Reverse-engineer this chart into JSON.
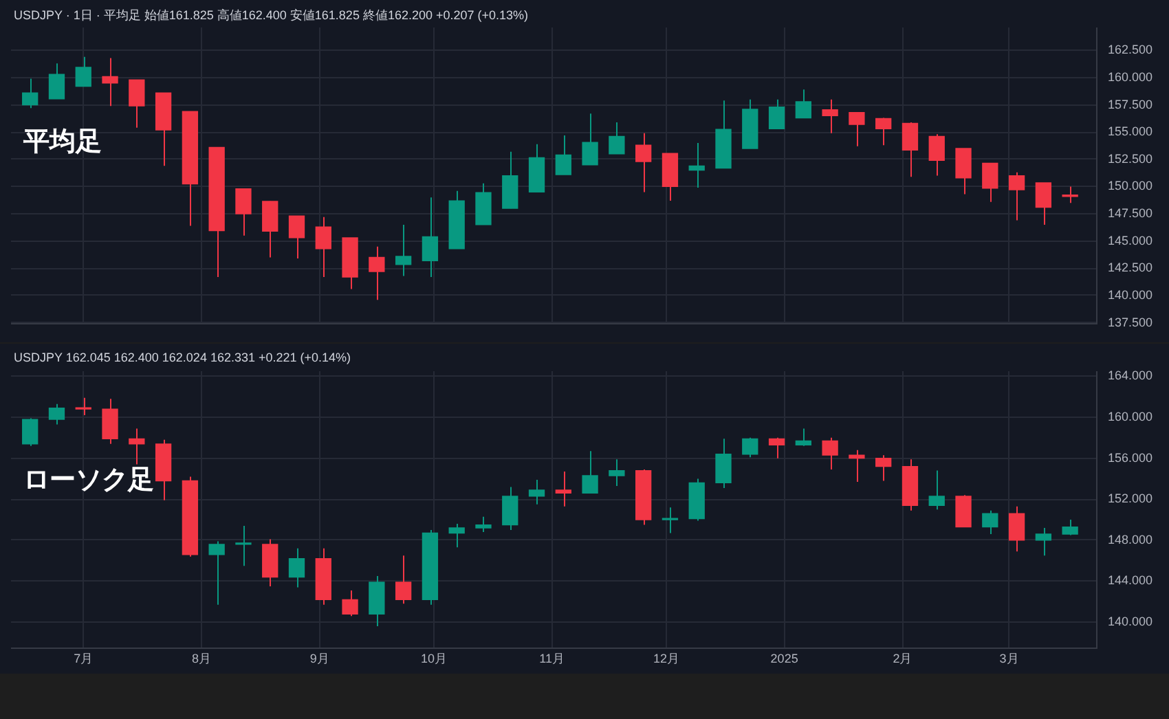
{
  "chart_data": [
    {
      "type": "candlestick",
      "title": "USDJPY · 1日 · 平均足 始値161.825 高値162.400 安値161.825 終値162.200 +0.207 (+0.13%)",
      "annotations": [
        "平均足"
      ],
      "x": [
        "2024-06-17",
        "2024-06-24",
        "2024-07-01",
        "2024-07-08",
        "2024-07-15",
        "2024-07-22",
        "2024-07-29",
        "2024-08-05",
        "2024-08-12",
        "2024-08-19",
        "2024-08-26",
        "2024-09-02",
        "2024-09-09",
        "2024-09-16",
        "2024-09-23",
        "2024-09-30",
        "2024-10-07",
        "2024-10-14",
        "2024-10-21",
        "2024-10-28",
        "2024-11-04",
        "2024-11-11",
        "2024-11-18",
        "2024-11-25",
        "2024-12-02",
        "2024-12-09",
        "2024-12-16",
        "2024-12-23",
        "2024-12-30",
        "2025-01-06",
        "2025-01-13",
        "2025-01-20",
        "2025-01-27",
        "2025-02-03",
        "2025-02-10",
        "2025-02-17",
        "2025-02-24",
        "2025-03-03",
        "2025-03-10",
        "2025-03-17"
      ],
      "ohlc": [
        [
          157.5,
          159.9,
          157.2,
          158.6
        ],
        [
          158.05,
          161.3,
          158.05,
          160.3
        ],
        [
          159.2,
          161.9,
          159.2,
          160.95
        ],
        [
          160.1,
          161.8,
          157.4,
          159.5
        ],
        [
          159.8,
          159.8,
          155.4,
          157.4
        ],
        [
          158.6,
          158.6,
          151.9,
          155.2
        ],
        [
          156.9,
          156.9,
          146.4,
          150.25
        ],
        [
          153.6,
          153.6,
          141.7,
          145.95
        ],
        [
          149.8,
          149.8,
          145.5,
          147.5
        ],
        [
          148.65,
          148.65,
          143.5,
          145.9
        ],
        [
          147.3,
          147.3,
          143.4,
          145.3
        ],
        [
          146.3,
          147.2,
          141.7,
          144.3
        ],
        [
          145.3,
          145.3,
          140.6,
          141.7
        ],
        [
          143.5,
          144.5,
          139.6,
          142.2
        ],
        [
          142.85,
          146.5,
          141.8,
          143.6
        ],
        [
          143.2,
          149.0,
          141.7,
          145.4
        ],
        [
          144.3,
          149.6,
          144.3,
          148.7
        ],
        [
          146.5,
          150.3,
          146.5,
          149.45
        ],
        [
          148.0,
          153.2,
          148.0,
          151.0
        ],
        [
          149.5,
          153.9,
          149.5,
          152.65
        ],
        [
          151.1,
          154.7,
          151.1,
          152.9
        ],
        [
          152.0,
          156.7,
          152.0,
          154.05
        ],
        [
          153.0,
          155.9,
          153.0,
          154.6
        ],
        [
          153.8,
          154.9,
          149.5,
          152.3
        ],
        [
          153.05,
          153.05,
          148.7,
          150.0
        ],
        [
          151.5,
          154.0,
          149.9,
          151.9
        ],
        [
          151.7,
          157.9,
          151.7,
          155.25
        ],
        [
          153.5,
          158.0,
          153.5,
          157.1
        ],
        [
          155.3,
          158.0,
          155.3,
          157.3
        ],
        [
          156.3,
          158.9,
          156.3,
          157.8
        ],
        [
          157.05,
          158.0,
          154.9,
          156.5
        ],
        [
          156.8,
          156.8,
          153.7,
          155.7
        ],
        [
          156.25,
          156.3,
          153.8,
          155.3
        ],
        [
          155.8,
          155.9,
          150.9,
          153.35
        ],
        [
          154.6,
          154.8,
          151.0,
          152.4
        ],
        [
          153.5,
          153.5,
          149.3,
          150.8
        ],
        [
          152.15,
          152.15,
          148.6,
          149.85
        ],
        [
          151.0,
          151.3,
          146.9,
          149.7
        ],
        [
          150.35,
          150.35,
          146.5,
          148.1
        ],
        [
          149.2,
          150.0,
          148.5,
          149.1
        ]
      ],
      "colors": [
        "#089981",
        "#089981",
        "#089981",
        "#f23645",
        "#f23645",
        "#f23645",
        "#f23645",
        "#f23645",
        "#f23645",
        "#f23645",
        "#f23645",
        "#f23645",
        "#f23645",
        "#f23645",
        "#089981",
        "#089981",
        "#089981",
        "#089981",
        "#089981",
        "#089981",
        "#089981",
        "#089981",
        "#089981",
        "#f23645",
        "#f23645",
        "#089981",
        "#089981",
        "#089981",
        "#089981",
        "#089981",
        "#f23645",
        "#f23645",
        "#f23645",
        "#f23645",
        "#f23645",
        "#f23645",
        "#f23645",
        "#f23645",
        "#f23645",
        "#f23645"
      ],
      "xlim": [
        "2024-06-12",
        "2025-03-24"
      ],
      "xticks": [
        {
          "value": "2024-07-01",
          "label": null
        },
        {
          "value": "2024-08-01",
          "label": null
        },
        {
          "value": "2024-09-01",
          "label": null
        },
        {
          "value": "2024-10-01",
          "label": null
        },
        {
          "value": "2024-11-01",
          "label": null
        },
        {
          "value": "2024-12-01",
          "label": null
        },
        {
          "value": "2025-01-01",
          "label": null
        },
        {
          "value": "2025-02-01",
          "label": null
        },
        {
          "value": "2025-03-01",
          "label": null
        }
      ],
      "ylim": [
        137.4,
        164.6
      ],
      "yticks": [
        {
          "value": 137.5,
          "label": "137.500"
        },
        {
          "value": 140,
          "label": "140.000"
        },
        {
          "value": 142.5,
          "label": "142.500"
        },
        {
          "value": 145,
          "label": "145.000"
        },
        {
          "value": 147.5,
          "label": "147.500"
        },
        {
          "value": 150,
          "label": "150.000"
        },
        {
          "value": 152.5,
          "label": "152.500"
        },
        {
          "value": 155,
          "label": "155.000"
        },
        {
          "value": 157.5,
          "label": "157.500"
        },
        {
          "value": 160,
          "label": "160.000"
        },
        {
          "value": 162.5,
          "label": "162.500"
        }
      ],
      "tick_labels": "y",
      "grid": true,
      "legend": false
    },
    {
      "type": "candlestick",
      "title": "USDJPY 162.045 162.400 162.024 162.331 +0.221 (+0.14%)",
      "annotations": [
        "ローソク足"
      ],
      "x": [
        "2024-06-17",
        "2024-06-24",
        "2024-07-01",
        "2024-07-08",
        "2024-07-15",
        "2024-07-22",
        "2024-07-29",
        "2024-08-05",
        "2024-08-12",
        "2024-08-19",
        "2024-08-26",
        "2024-09-02",
        "2024-09-09",
        "2024-09-16",
        "2024-09-23",
        "2024-09-30",
        "2024-10-07",
        "2024-10-14",
        "2024-10-21",
        "2024-10-28",
        "2024-11-04",
        "2024-11-11",
        "2024-11-18",
        "2024-11-25",
        "2024-12-02",
        "2024-12-09",
        "2024-12-16",
        "2024-12-23",
        "2024-12-30",
        "2025-01-06",
        "2025-01-13",
        "2025-01-20",
        "2025-01-27",
        "2025-02-03",
        "2025-02-10",
        "2025-02-17",
        "2025-02-24",
        "2025-03-03",
        "2025-03-10",
        "2025-03-17"
      ],
      "ohlc": [
        [
          157.4,
          159.9,
          157.2,
          159.8
        ],
        [
          159.8,
          161.3,
          159.3,
          160.9
        ],
        [
          160.9,
          161.9,
          160.2,
          160.8
        ],
        [
          160.8,
          161.8,
          157.4,
          157.9
        ],
        [
          157.9,
          158.9,
          155.4,
          157.4
        ],
        [
          157.4,
          157.8,
          151.9,
          153.8
        ],
        [
          153.8,
          154.2,
          146.4,
          146.6
        ],
        [
          146.6,
          147.9,
          141.7,
          147.6
        ],
        [
          147.6,
          149.4,
          145.5,
          147.6
        ],
        [
          147.6,
          148.1,
          143.5,
          144.4
        ],
        [
          144.4,
          147.2,
          143.4,
          146.2
        ],
        [
          146.2,
          147.2,
          141.7,
          142.2
        ],
        [
          142.2,
          143.1,
          140.6,
          140.8
        ],
        [
          140.8,
          144.5,
          139.6,
          143.9
        ],
        [
          143.9,
          146.5,
          141.8,
          142.2
        ],
        [
          142.2,
          149.0,
          141.7,
          148.7
        ],
        [
          148.7,
          149.6,
          147.3,
          149.2
        ],
        [
          149.2,
          150.3,
          148.8,
          149.5
        ],
        [
          149.5,
          153.2,
          149.0,
          152.3
        ],
        [
          152.3,
          153.9,
          151.5,
          152.9
        ],
        [
          152.9,
          154.7,
          151.3,
          152.6
        ],
        [
          152.6,
          156.7,
          152.6,
          154.3
        ],
        [
          154.3,
          155.9,
          153.3,
          154.8
        ],
        [
          154.8,
          154.9,
          149.5,
          150.0
        ],
        [
          150.0,
          151.2,
          148.7,
          150.1
        ],
        [
          150.1,
          154.0,
          149.9,
          153.6
        ],
        [
          153.6,
          157.9,
          153.1,
          156.4
        ],
        [
          156.4,
          158.0,
          156.1,
          157.9
        ],
        [
          157.9,
          158.0,
          156.0,
          157.3
        ],
        [
          157.3,
          158.9,
          157.2,
          157.7
        ],
        [
          157.7,
          158.0,
          154.9,
          156.3
        ],
        [
          156.3,
          156.8,
          153.7,
          156.0
        ],
        [
          156.0,
          156.3,
          153.8,
          155.2
        ],
        [
          155.2,
          155.9,
          150.9,
          151.4
        ],
        [
          151.4,
          154.8,
          151.0,
          152.3
        ],
        [
          152.3,
          152.4,
          149.3,
          149.3
        ],
        [
          149.3,
          150.9,
          148.6,
          150.6
        ],
        [
          150.6,
          151.3,
          146.9,
          148.0
        ],
        [
          148.0,
          149.2,
          146.5,
          148.6
        ],
        [
          148.6,
          150.0,
          148.5,
          149.3
        ]
      ],
      "colors": [
        "#089981",
        "#089981",
        "#f23645",
        "#f23645",
        "#f23645",
        "#f23645",
        "#f23645",
        "#089981",
        "#089981",
        "#f23645",
        "#089981",
        "#f23645",
        "#f23645",
        "#089981",
        "#f23645",
        "#089981",
        "#089981",
        "#089981",
        "#089981",
        "#089981",
        "#f23645",
        "#089981",
        "#089981",
        "#f23645",
        "#089981",
        "#089981",
        "#089981",
        "#089981",
        "#f23645",
        "#089981",
        "#f23645",
        "#f23645",
        "#f23645",
        "#f23645",
        "#089981",
        "#f23645",
        "#089981",
        "#f23645",
        "#089981",
        "#089981"
      ],
      "xlim": [
        "2024-06-12",
        "2025-03-24"
      ],
      "xticks": [
        {
          "value": "2024-07-01",
          "label": "7月"
        },
        {
          "value": "2024-08-01",
          "label": "8月"
        },
        {
          "value": "2024-09-01",
          "label": "9月"
        },
        {
          "value": "2024-10-01",
          "label": "10月"
        },
        {
          "value": "2024-11-01",
          "label": "11月"
        },
        {
          "value": "2024-12-01",
          "label": "12月"
        },
        {
          "value": "2025-01-01",
          "label": "2025"
        },
        {
          "value": "2025-02-01",
          "label": "2月"
        },
        {
          "value": "2025-03-01",
          "label": "3月"
        }
      ],
      "ylim": [
        137.5,
        164.5
      ],
      "yticks": [
        {
          "value": 140,
          "label": "140.000"
        },
        {
          "value": 144,
          "label": "144.000"
        },
        {
          "value": 148,
          "label": "148.000"
        },
        {
          "value": 152,
          "label": "152.000"
        },
        {
          "value": 156,
          "label": "156.000"
        },
        {
          "value": 160,
          "label": "160.000"
        },
        {
          "value": 164,
          "label": "164.000"
        }
      ],
      "grid": true,
      "legend": false
    }
  ]
}
